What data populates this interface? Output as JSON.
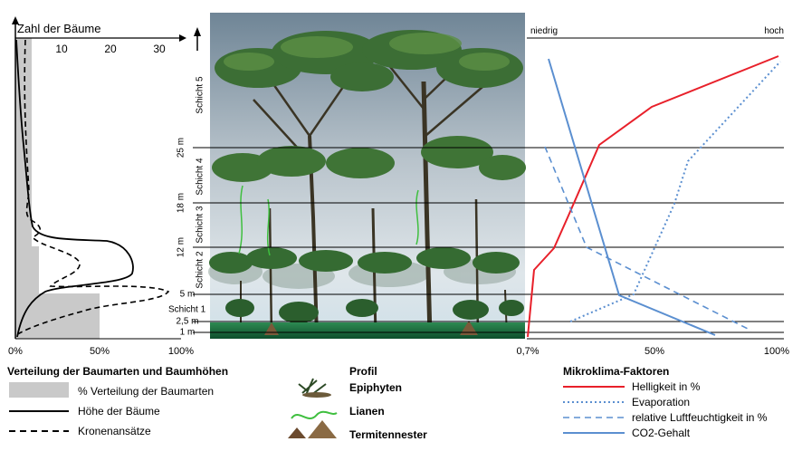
{
  "left_panel": {
    "title": "Zahl der Bäume",
    "top_ticks": [
      "10",
      "20",
      "30"
    ],
    "bottom_ticks": [
      "0%",
      "50%",
      "100%"
    ]
  },
  "height_labels": [
    "25 m",
    "18 m",
    "12 m",
    "5 m",
    "2,5 m",
    "1 m"
  ],
  "layer_labels": [
    "Schicht 5",
    "Schicht 4",
    "Schicht 3",
    "Schicht 2",
    "Schicht 1"
  ],
  "right_panel": {
    "top_left": "niedrig",
    "top_right": "hoch",
    "bottom_ticks": [
      "0,7%",
      "50%",
      "100%"
    ]
  },
  "legend_left": {
    "title": "Verteilung der Baumarten und Baumhöhen",
    "items": [
      "% Verteilung der Baumarten",
      "Höhe der Bäume",
      "Kronenansätze"
    ]
  },
  "legend_middle": {
    "title": "Profil",
    "items": [
      "Epiphyten",
      "Lianen",
      "Termitennester"
    ]
  },
  "legend_right": {
    "title": "Mikroklima-Faktoren",
    "items": [
      "Helligkeit in %",
      "Evaporation",
      "relative Luftfeuchtigkeit in %",
      "CO2-Gehalt"
    ]
  },
  "colors": {
    "helligkeit": "#e8202a",
    "evaporation": "#5b8fd0",
    "luftfeuchtigkeit": "#5b8fd0",
    "co2": "#5b8fd0",
    "gray_fill": "#c9c9c9"
  }
}
